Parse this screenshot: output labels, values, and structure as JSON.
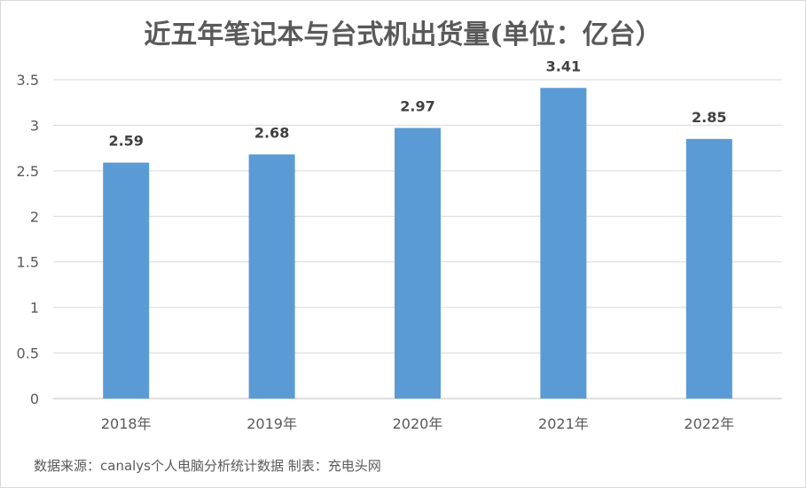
{
  "chart_data": {
    "type": "bar",
    "title": "近五年笔记本与台式机出货量(单位：亿台）",
    "categories": [
      "2018年",
      "2019年",
      "2020年",
      "2021年",
      "2022年"
    ],
    "values": [
      2.59,
      2.68,
      2.97,
      3.41,
      2.85
    ],
    "data_labels": [
      "2.59",
      "2.68",
      "2.97",
      "3.41",
      "2.85"
    ],
    "y_ticks": [
      "0",
      "0.5",
      "1",
      "1.5",
      "2",
      "2.5",
      "3",
      "3.5"
    ],
    "ylim": [
      0,
      3.5
    ],
    "grid": true,
    "legend": "none",
    "bar_color": "#5b9bd5",
    "source_note": "数据来源：canalys个人电脑分析统计数据 制表：充电头网"
  }
}
